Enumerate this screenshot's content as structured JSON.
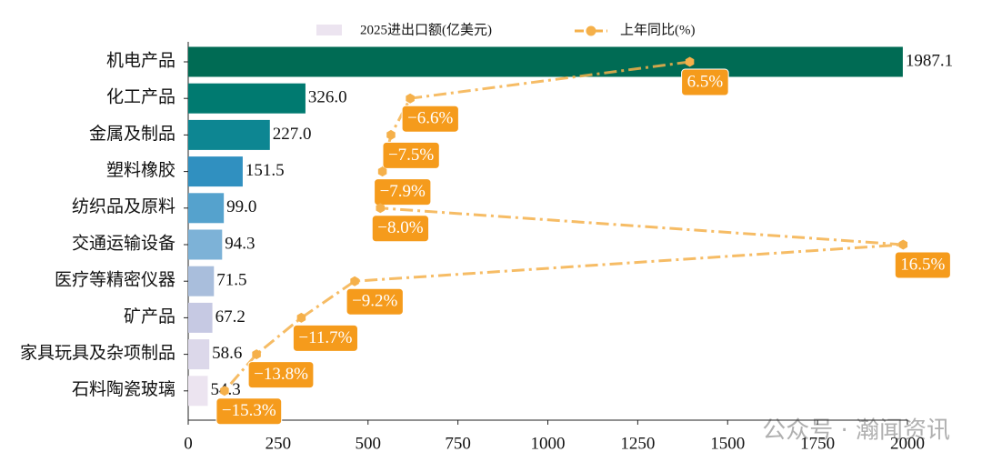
{
  "chart_data": {
    "type": "bar",
    "categories": [
      "机电产品",
      "化工产品",
      "金属及制品",
      "塑料橡胶",
      "纺织品及原料",
      "交通运输设备",
      "医疗等精密仪器",
      "矿产品",
      "家具玩具及杂项制品",
      "石料陶瓷玻璃"
    ],
    "series": [
      {
        "name": "2025进出口额(亿美元)",
        "type": "bar",
        "legend_color": "#ece4f0",
        "colors": [
          "#006b54",
          "#007a70",
          "#0d8692",
          "#3090c0",
          "#55a2cd",
          "#7db2d7",
          "#a9bedc",
          "#c6c9e3",
          "#dcd8ea",
          "#ece4f0"
        ],
        "values": [
          1987.1,
          326,
          227,
          151.5,
          99,
          94.3,
          71.5,
          67.2,
          58.6,
          54.3
        ],
        "value_labels": [
          "1987.1",
          "326.0",
          "227.0",
          "151.5",
          "99.0",
          "94.3",
          "71.5",
          "67.2",
          "58.6",
          "54.3"
        ]
      },
      {
        "name": "上年同比(%)",
        "type": "line",
        "axis": "x2",
        "color": "#f5b04a",
        "label_color": "#f59b1c",
        "values": [
          6.5,
          -6.6,
          -7.5,
          -7.9,
          -8.0,
          16.5,
          -9.2,
          -11.7,
          -13.8,
          -15.3
        ],
        "value_labels": [
          "6.5%",
          "−6.6%",
          "−7.5%",
          "−7.9%",
          "−8.0%",
          "16.5%",
          "−9.2%",
          "−11.7%",
          "−13.8%",
          "−15.3%"
        ]
      }
    ],
    "xlim": [
      0,
      2000
    ],
    "xticks": [
      0,
      250,
      500,
      750,
      1000,
      1250,
      1500,
      1750,
      2000
    ],
    "x2lim": [
      -17,
      16.7
    ]
  },
  "watermark": "公众号 · 瀚闻资讯"
}
